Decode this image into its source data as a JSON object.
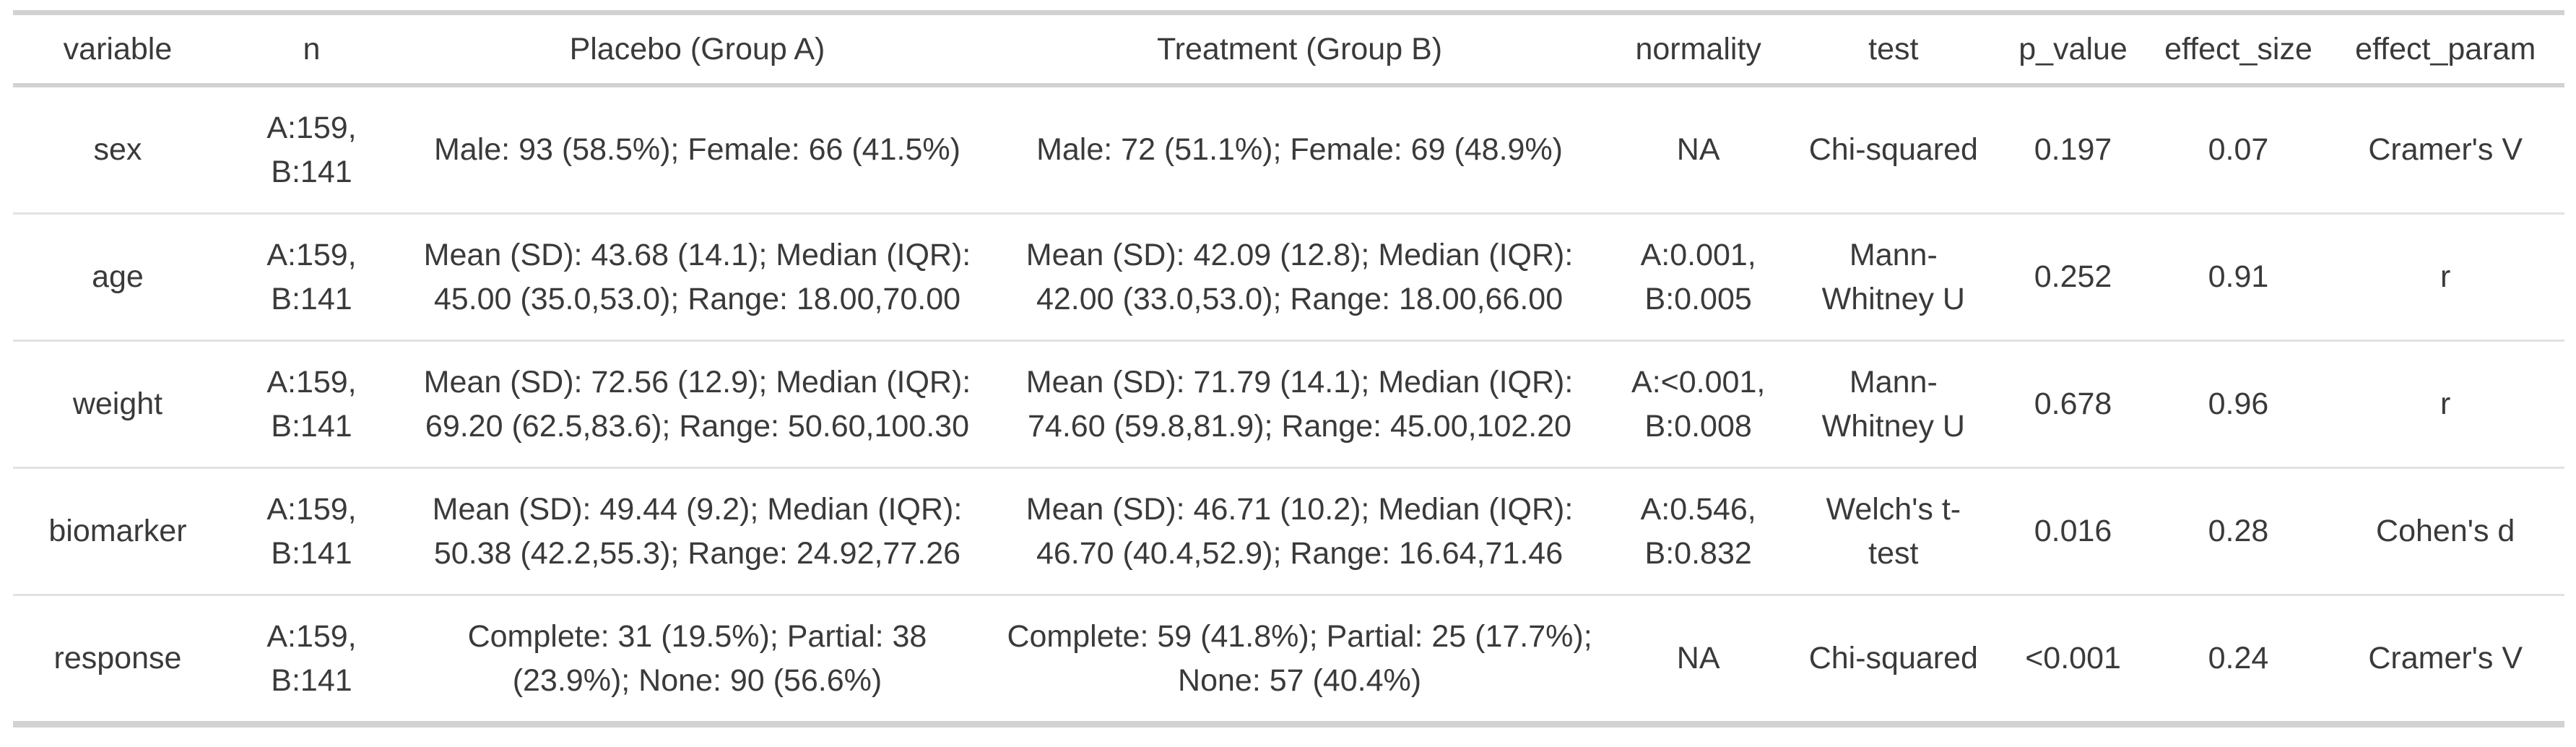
{
  "colors": {
    "text": "#3a3a3a",
    "border_heavy": "#d2d2d2",
    "border_light": "#e2e2e2",
    "background": "#ffffff"
  },
  "chart_data": {
    "type": "table",
    "title": "",
    "columns": [
      {
        "key": "variable",
        "label": "variable"
      },
      {
        "key": "n",
        "label": "n"
      },
      {
        "key": "placebo",
        "label": "Placebo (Group A)"
      },
      {
        "key": "treatment",
        "label": "Treatment (Group B)"
      },
      {
        "key": "normality",
        "label": "normality"
      },
      {
        "key": "test",
        "label": "test"
      },
      {
        "key": "p_value",
        "label": "p_value"
      },
      {
        "key": "effect_size",
        "label": "effect_size"
      },
      {
        "key": "effect_param",
        "label": "effect_param"
      }
    ],
    "rows": [
      {
        "variable": "sex",
        "n": "A:159, B:141",
        "placebo": "Male: 93 (58.5%); Female: 66 (41.5%)",
        "treatment": "Male: 72 (51.1%); Female: 69 (48.9%)",
        "normality": "NA",
        "test": "Chi-squared",
        "p_value": "0.197",
        "effect_size": "0.07",
        "effect_param": "Cramer's V"
      },
      {
        "variable": "age",
        "n": "A:159, B:141",
        "placebo": "Mean (SD): 43.68 (14.1); Median (IQR): 45.00 (35.0,53.0); Range: 18.00,70.00",
        "treatment": "Mean (SD): 42.09 (12.8); Median (IQR): 42.00 (33.0,53.0); Range: 18.00,66.00",
        "normality": "A:0.001, B:0.005",
        "test": "Mann-Whitney U",
        "p_value": "0.252",
        "effect_size": "0.91",
        "effect_param": "r"
      },
      {
        "variable": "weight",
        "n": "A:159, B:141",
        "placebo": "Mean (SD): 72.56 (12.9); Median (IQR): 69.20 (62.5,83.6); Range: 50.60,100.30",
        "treatment": "Mean (SD): 71.79 (14.1); Median (IQR): 74.60 (59.8,81.9); Range: 45.00,102.20",
        "normality": "A:<0.001, B:0.008",
        "test": "Mann-Whitney U",
        "p_value": "0.678",
        "effect_size": "0.96",
        "effect_param": "r"
      },
      {
        "variable": "biomarker",
        "n": "A:159, B:141",
        "placebo": "Mean (SD): 49.44 (9.2); Median (IQR): 50.38 (42.2,55.3); Range: 24.92,77.26",
        "treatment": "Mean (SD): 46.71 (10.2); Median (IQR): 46.70 (40.4,52.9); Range: 16.64,71.46",
        "normality": "A:0.546, B:0.832",
        "test": "Welch's t-test",
        "p_value": "0.016",
        "effect_size": "0.28",
        "effect_param": "Cohen's d"
      },
      {
        "variable": "response",
        "n": "A:159, B:141",
        "placebo": "Complete: 31 (19.5%); Partial: 38 (23.9%); None: 90 (56.6%)",
        "treatment": "Complete: 59 (41.8%); Partial: 25 (17.7%); None: 57 (40.4%)",
        "normality": "NA",
        "test": "Chi-squared",
        "p_value": "<0.001",
        "effect_size": "0.24",
        "effect_param": "Cramer's V"
      }
    ]
  }
}
